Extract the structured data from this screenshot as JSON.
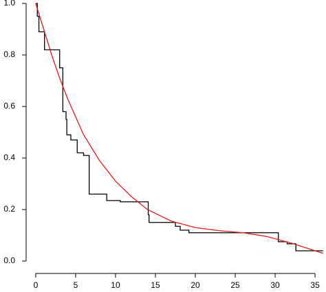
{
  "chart_data": {
    "type": "line",
    "xlim": [
      -1.2,
      36.2
    ],
    "ylim": [
      -0.048,
      1.0
    ],
    "xticks": [
      0,
      5,
      10,
      15,
      20,
      25,
      30,
      35
    ],
    "yticks": [
      {
        "value": 0,
        "label": "0.0"
      },
      0.2,
      0.4,
      0.6,
      0.8,
      {
        "value": 1,
        "label": "1.0"
      }
    ],
    "series": [
      {
        "color": "#000000",
        "step": "post",
        "x": [
          0,
          0.2,
          0.4,
          1.1,
          3.0,
          3.4,
          3.8,
          3.9,
          4.4,
          5.2,
          6.0,
          6.7,
          8.9,
          10.6,
          14.1,
          14.2,
          17.5,
          18.1,
          19.2,
          30.4,
          31.5,
          32.6,
          36
        ],
        "values": [
          1.0,
          0.95,
          0.89,
          0.82,
          0.75,
          0.58,
          0.55,
          0.49,
          0.47,
          0.42,
          0.41,
          0.26,
          0.235,
          0.23,
          0.18,
          0.15,
          0.135,
          0.12,
          0.11,
          0.075,
          0.067,
          0.04,
          0.04
        ]
      },
      {
        "color": "#e31a1c",
        "x": [
          0,
          1,
          2,
          3,
          4,
          5,
          6,
          7,
          8,
          10,
          12,
          14,
          17,
          20,
          23,
          26,
          29,
          32,
          35,
          36
        ],
        "values": [
          1.0,
          0.9,
          0.8,
          0.71,
          0.63,
          0.56,
          0.49,
          0.44,
          0.39,
          0.31,
          0.25,
          0.2,
          0.155,
          0.13,
          0.118,
          0.11,
          0.095,
          0.07,
          0.04,
          0.03
        ]
      }
    ]
  }
}
